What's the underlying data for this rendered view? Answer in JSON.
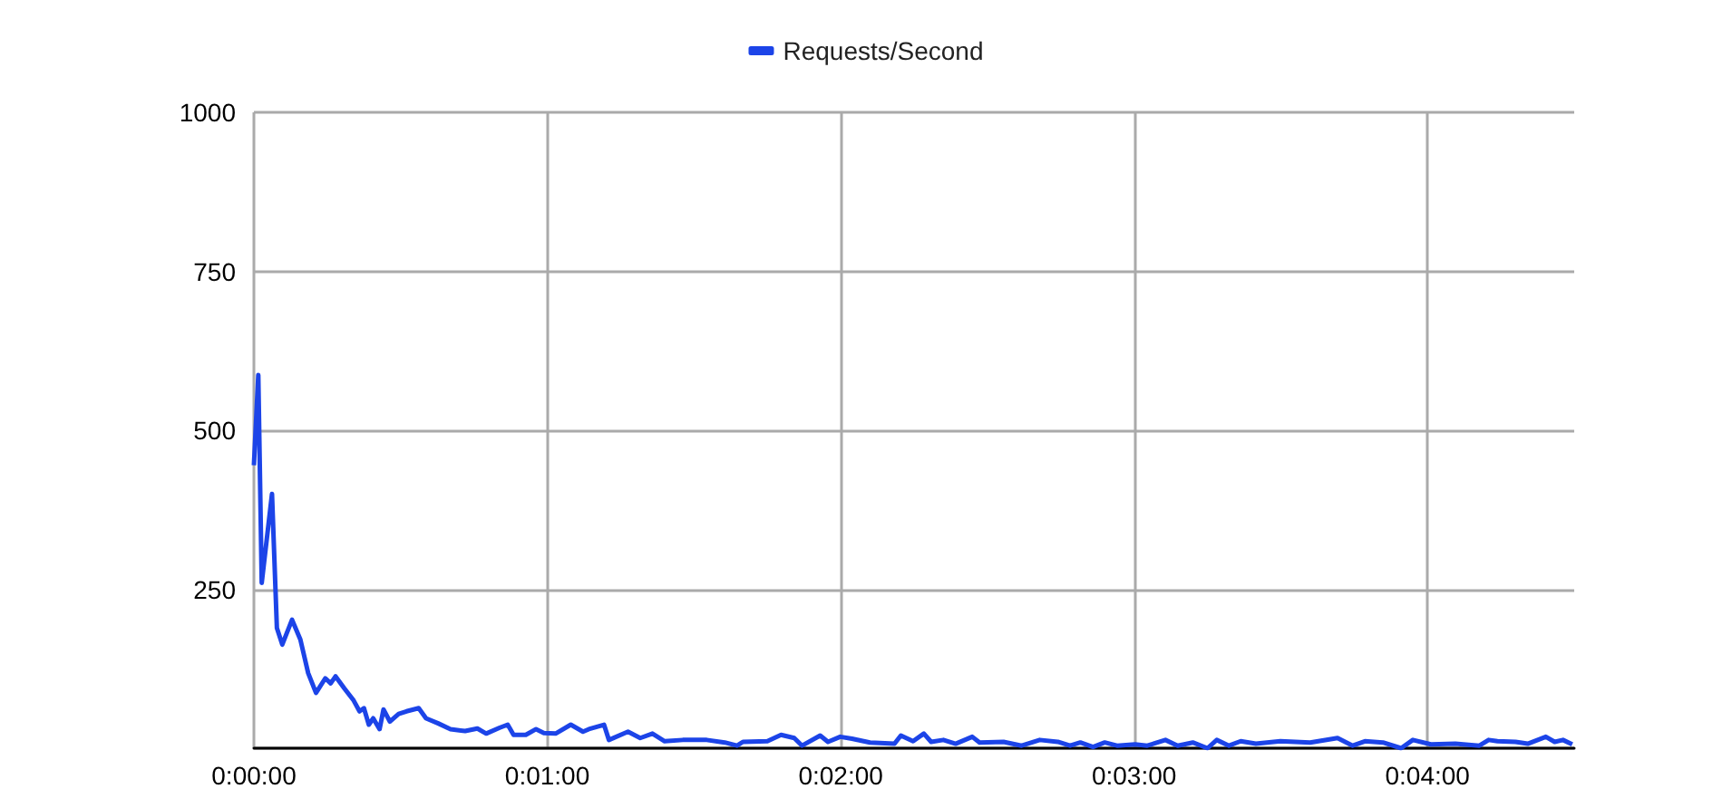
{
  "chart_data": {
    "type": "line",
    "x": [
      0,
      0.9,
      1.6,
      3.7,
      4.7,
      5.8,
      7.8,
      9.5,
      11.1,
      12.7,
      14.6,
      15.7,
      16.7,
      18.5,
      20.4,
      21.6,
      22.5,
      23.5,
      24.4,
      25.7,
      26.5,
      27.8,
      29.6,
      31.2,
      33.7,
      35.2,
      37.7,
      40.2,
      43.2,
      45.7,
      47.5,
      50.2,
      51.9,
      53.1,
      55.6,
      57.7,
      59.3,
      61.7,
      64.8,
      67.3,
      68.5,
      71.6,
      72.6,
      76.5,
      79,
      81.5,
      84,
      87.7,
      92.6,
      96.3,
      98.8,
      100,
      105,
      107.8,
      110.5,
      112.1,
      115.8,
      117.4,
      119.9,
      122.3,
      126,
      131,
      132.3,
      134.8,
      137,
      138.5,
      141,
      143.5,
      146.9,
      148.4,
      153.3,
      157,
      160.7,
      164.4,
      166.9,
      169,
      171.6,
      174,
      176.5,
      180.2,
      182.7,
      186.4,
      188.9,
      192,
      195,
      196.9,
      199.4,
      201.8,
      204.9,
      209.9,
      216,
      221.6,
      224.7,
      227.2,
      230.9,
      234.6,
      237,
      240.7,
      245.7,
      250.6,
      252.5,
      254.3,
      258,
      260.5,
      264.2,
      266,
      267.7,
      269.6
    ],
    "series": [
      {
        "name": "Requests/Second",
        "color": "#1c44e8",
        "values": [
          445,
          587,
          260,
          400,
          189,
          163,
          202,
          171,
          118,
          87,
          110,
          102,
          113,
          94,
          75,
          58,
          63,
          37,
          47,
          30,
          61,
          42,
          54,
          58,
          63,
          47,
          39,
          30,
          27,
          31,
          23,
          32,
          37,
          21,
          21,
          30,
          24,
          23,
          37,
          26,
          30,
          37,
          13,
          26,
          16,
          23,
          11,
          13,
          13,
          9,
          4,
          10,
          11,
          21,
          16,
          4,
          20,
          10,
          18,
          15,
          9,
          7,
          20,
          11,
          23,
          10,
          13,
          7,
          18,
          9,
          10,
          4,
          13,
          10,
          4,
          9,
          2,
          9,
          4,
          6,
          4,
          13,
          4,
          9,
          0,
          13,
          4,
          11,
          7,
          11,
          9,
          16,
          4,
          11,
          9,
          0,
          13,
          6,
          7,
          4,
          13,
          11,
          10,
          7,
          18,
          10,
          13,
          6
        ]
      }
    ],
    "xlim": [
      0,
      270
    ],
    "xticks": [
      {
        "value": 0,
        "label": "0:00:00"
      },
      {
        "value": 60,
        "label": "0:01:00"
      },
      {
        "value": 120,
        "label": "0:02:00"
      },
      {
        "value": 180,
        "label": "0:03:00"
      },
      {
        "value": 240,
        "label": "0:04:00"
      }
    ],
    "ylim": [
      0,
      1000
    ],
    "yticks": [
      {
        "value": 0,
        "label": null
      },
      250,
      500,
      750,
      1000
    ],
    "grid": true,
    "legend": "top",
    "marker": "none",
    "line_style": "solid"
  }
}
